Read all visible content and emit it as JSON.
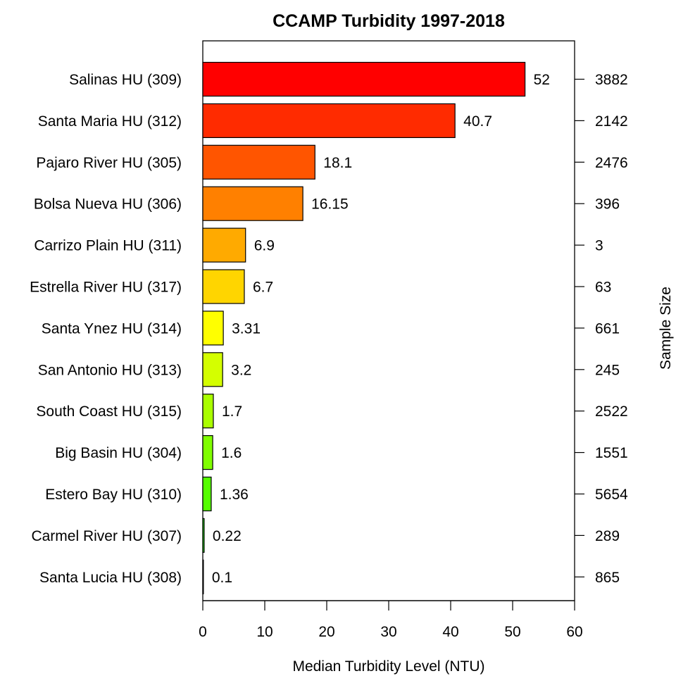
{
  "chart_data": {
    "type": "bar",
    "orientation": "horizontal",
    "title": "CCAMP Turbidity 1997-2018",
    "xlabel": "Median Turbidity Level (NTU)",
    "right_axis_label": "Sample Size",
    "xlim": [
      0,
      60
    ],
    "xticks": [
      0,
      10,
      20,
      30,
      40,
      50,
      60
    ],
    "grid": false,
    "categories": [
      "Salinas HU (309)",
      "Santa Maria HU (312)",
      "Pajaro River HU (305)",
      "Bolsa Nueva HU (306)",
      "Carrizo Plain HU (311)",
      "Estrella River HU (317)",
      "Santa Ynez HU (314)",
      "San Antonio HU (313)",
      "South Coast HU (315)",
      "Big Basin HU (304)",
      "Estero Bay HU (310)",
      "Carmel River HU (307)",
      "Santa Lucia HU (308)"
    ],
    "values": [
      52,
      40.7,
      18.1,
      16.15,
      6.9,
      6.7,
      3.31,
      3.2,
      1.7,
      1.6,
      1.36,
      0.22,
      0.1
    ],
    "value_labels": [
      "52",
      "40.7",
      "18.1",
      "16.15",
      "6.9",
      "6.7",
      "3.31",
      "3.2",
      "1.7",
      "1.6",
      "1.36",
      "0.22",
      "0.1"
    ],
    "sample_sizes": [
      "3882",
      "2142",
      "2476",
      "396",
      "3",
      "63",
      "661",
      "245",
      "2522",
      "1551",
      "5654",
      "289",
      "865"
    ],
    "colors": [
      "#ff0000",
      "#ff2b00",
      "#ff5500",
      "#ff8000",
      "#ffaa00",
      "#ffd500",
      "#ffff00",
      "#d4ff00",
      "#aaff00",
      "#80ff00",
      "#55ff00",
      "#2bff00",
      "#00ff00"
    ]
  }
}
